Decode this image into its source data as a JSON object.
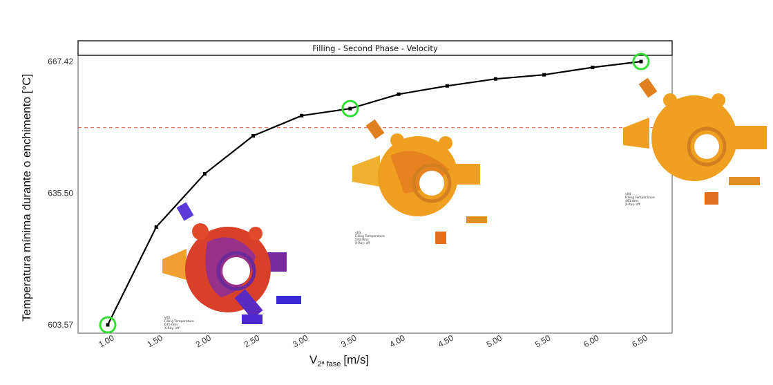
{
  "chart_data": {
    "type": "line",
    "title": "Filling - Second Phase - Velocity",
    "xlabel_main": "V",
    "xlabel_sub": "2ª fase",
    "xlabel_unit": "[m/s]",
    "ylabel": "Temperatura mínima durante o enchimento [°C]",
    "xlim": [
      1.0,
      6.5
    ],
    "ylim": [
      603.57,
      667.42
    ],
    "x_ticks": [
      "1.00",
      "1.50",
      "2.00",
      "2.50",
      "3.00",
      "3.50",
      "4.00",
      "4.50",
      "5.00",
      "5.50",
      "6.00",
      "6.50"
    ],
    "y_ticks": [
      "603.57",
      "635.50",
      "667.42"
    ],
    "series": [
      {
        "x": [
          1.0,
          1.5,
          2.0,
          2.5,
          3.0,
          3.5,
          4.0,
          4.5,
          5.0,
          5.5,
          6.0,
          6.5
        ],
        "y": [
          603.57,
          627.3,
          640.2,
          649.4,
          654.3,
          656.0,
          659.5,
          661.5,
          663.2,
          664.2,
          666.0,
          667.42
        ]
      }
    ],
    "reference_line": {
      "y": 651.4,
      "style": "dashed",
      "color": "#e05a4a"
    },
    "highlighted_points": [
      1.0,
      3.5,
      6.5
    ],
    "highlight_color": "#33dd33",
    "line_color": "#000000",
    "grid": false,
    "inset_captions": [
      {
        "id": "v02",
        "lines": [
          "v02",
          "Filling Temperature",
          "675.0ms",
          "X-Ray: off"
        ]
      },
      {
        "id": "v03",
        "lines": [
          "v03",
          "Filling Temperature",
          "532.9ms",
          "X-Ray: off"
        ]
      },
      {
        "id": "v04",
        "lines": [
          "v04",
          "Filling Temperature",
          "481.8ms",
          "X-Ray: off"
        ]
      }
    ]
  }
}
